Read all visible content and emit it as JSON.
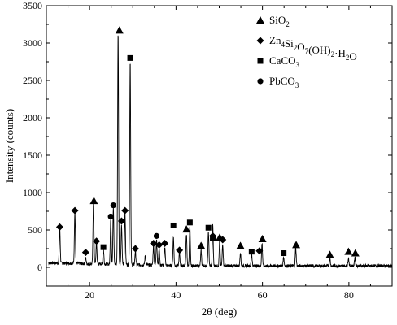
{
  "chart_data": {
    "type": "line",
    "title": "",
    "xlabel": "2θ (deg)",
    "ylabel": "Intensity (counts)",
    "xlim": [
      10,
      90
    ],
    "ylim": [
      -250,
      3500
    ],
    "x_ticks": [
      20,
      40,
      60,
      80
    ],
    "y_ticks": [
      0,
      500,
      1000,
      1500,
      2000,
      2500,
      3000,
      3500
    ],
    "grid": false,
    "legend_position": "top-right",
    "legend": [
      {
        "marker": "triangle",
        "label_parts": [
          {
            "t": "SiO"
          },
          {
            "t": "2",
            "sub": true
          }
        ]
      },
      {
        "marker": "diamond",
        "label_parts": [
          {
            "t": "Zn"
          },
          {
            "t": "4",
            "sub": true
          },
          {
            "t": "Si"
          },
          {
            "t": "2",
            "sub": true
          },
          {
            "t": "O"
          },
          {
            "t": "7",
            "sub": true
          },
          {
            "t": "(OH)"
          },
          {
            "t": "2",
            "sub": true
          },
          {
            "t": "·H"
          },
          {
            "t": "2",
            "sub": true
          },
          {
            "t": "O"
          }
        ]
      },
      {
        "marker": "square",
        "label_parts": [
          {
            "t": "CaCO"
          },
          {
            "t": "3",
            "sub": true
          }
        ]
      },
      {
        "marker": "circle",
        "label_parts": [
          {
            "t": "PbCO"
          },
          {
            "t": "3",
            "sub": true
          }
        ]
      }
    ],
    "baseline": 20,
    "peaks": [
      {
        "x": 13.1,
        "y": 470
      },
      {
        "x": 16.6,
        "y": 700
      },
      {
        "x": 19.1,
        "y": 80
      },
      {
        "x": 20.9,
        "y": 830
      },
      {
        "x": 21.6,
        "y": 280
      },
      {
        "x": 23.2,
        "y": 200
      },
      {
        "x": 24.9,
        "y": 620
      },
      {
        "x": 25.5,
        "y": 760
      },
      {
        "x": 26.6,
        "y": 3100
      },
      {
        "x": 27.4,
        "y": 520
      },
      {
        "x": 28.2,
        "y": 700
      },
      {
        "x": 29.4,
        "y": 2730
      },
      {
        "x": 30.6,
        "y": 180
      },
      {
        "x": 32.9,
        "y": 130
      },
      {
        "x": 34.8,
        "y": 260
      },
      {
        "x": 35.5,
        "y": 350
      },
      {
        "x": 36.1,
        "y": 230
      },
      {
        "x": 37.4,
        "y": 250
      },
      {
        "x": 39.4,
        "y": 380
      },
      {
        "x": 40.8,
        "y": 170
      },
      {
        "x": 42.4,
        "y": 430
      },
      {
        "x": 43.2,
        "y": 520
      },
      {
        "x": 45.8,
        "y": 200
      },
      {
        "x": 47.5,
        "y": 450
      },
      {
        "x": 48.5,
        "y": 540
      },
      {
        "x": 50.1,
        "y": 330
      },
      {
        "x": 50.8,
        "y": 290
      },
      {
        "x": 54.9,
        "y": 180
      },
      {
        "x": 57.5,
        "y": 160
      },
      {
        "x": 59.9,
        "y": 300
      },
      {
        "x": 64.9,
        "y": 120
      },
      {
        "x": 67.7,
        "y": 240
      },
      {
        "x": 75.6,
        "y": 100
      },
      {
        "x": 79.9,
        "y": 110
      },
      {
        "x": 81.4,
        "y": 120
      }
    ],
    "markers": [
      {
        "shape": "triangle",
        "x": 21.0,
        "y": 890
      },
      {
        "shape": "triangle",
        "x": 26.9,
        "y": 3170
      },
      {
        "shape": "triangle",
        "x": 42.4,
        "y": 510
      },
      {
        "shape": "triangle",
        "x": 45.8,
        "y": 290
      },
      {
        "shape": "triangle",
        "x": 50.1,
        "y": 400
      },
      {
        "shape": "triangle",
        "x": 54.9,
        "y": 290
      },
      {
        "shape": "triangle",
        "x": 60.0,
        "y": 380
      },
      {
        "shape": "triangle",
        "x": 67.8,
        "y": 300
      },
      {
        "shape": "triangle",
        "x": 75.6,
        "y": 170
      },
      {
        "shape": "triangle",
        "x": 79.9,
        "y": 210
      },
      {
        "shape": "triangle",
        "x": 81.5,
        "y": 190
      },
      {
        "shape": "diamond",
        "x": 13.1,
        "y": 540
      },
      {
        "shape": "diamond",
        "x": 16.6,
        "y": 760
      },
      {
        "shape": "diamond",
        "x": 19.1,
        "y": 200
      },
      {
        "shape": "diamond",
        "x": 21.6,
        "y": 350
      },
      {
        "shape": "diamond",
        "x": 27.4,
        "y": 620
      },
      {
        "shape": "diamond",
        "x": 28.2,
        "y": 760
      },
      {
        "shape": "diamond",
        "x": 30.6,
        "y": 250
      },
      {
        "shape": "diamond",
        "x": 34.8,
        "y": 320
      },
      {
        "shape": "diamond",
        "x": 36.1,
        "y": 300
      },
      {
        "shape": "diamond",
        "x": 37.4,
        "y": 320
      },
      {
        "shape": "diamond",
        "x": 40.8,
        "y": 230
      },
      {
        "shape": "diamond",
        "x": 48.5,
        "y": 420
      },
      {
        "shape": "diamond",
        "x": 50.8,
        "y": 370
      },
      {
        "shape": "diamond",
        "x": 59.3,
        "y": 220
      },
      {
        "shape": "square",
        "x": 23.2,
        "y": 270
      },
      {
        "shape": "square",
        "x": 29.4,
        "y": 2800
      },
      {
        "shape": "square",
        "x": 39.4,
        "y": 560
      },
      {
        "shape": "square",
        "x": 43.2,
        "y": 600
      },
      {
        "shape": "square",
        "x": 47.5,
        "y": 530
      },
      {
        "shape": "square",
        "x": 48.5,
        "y": 390
      },
      {
        "shape": "square",
        "x": 57.5,
        "y": 210
      },
      {
        "shape": "square",
        "x": 64.9,
        "y": 190
      },
      {
        "shape": "circle",
        "x": 24.9,
        "y": 680
      },
      {
        "shape": "circle",
        "x": 25.5,
        "y": 830
      },
      {
        "shape": "circle",
        "x": 35.5,
        "y": 420
      }
    ]
  }
}
